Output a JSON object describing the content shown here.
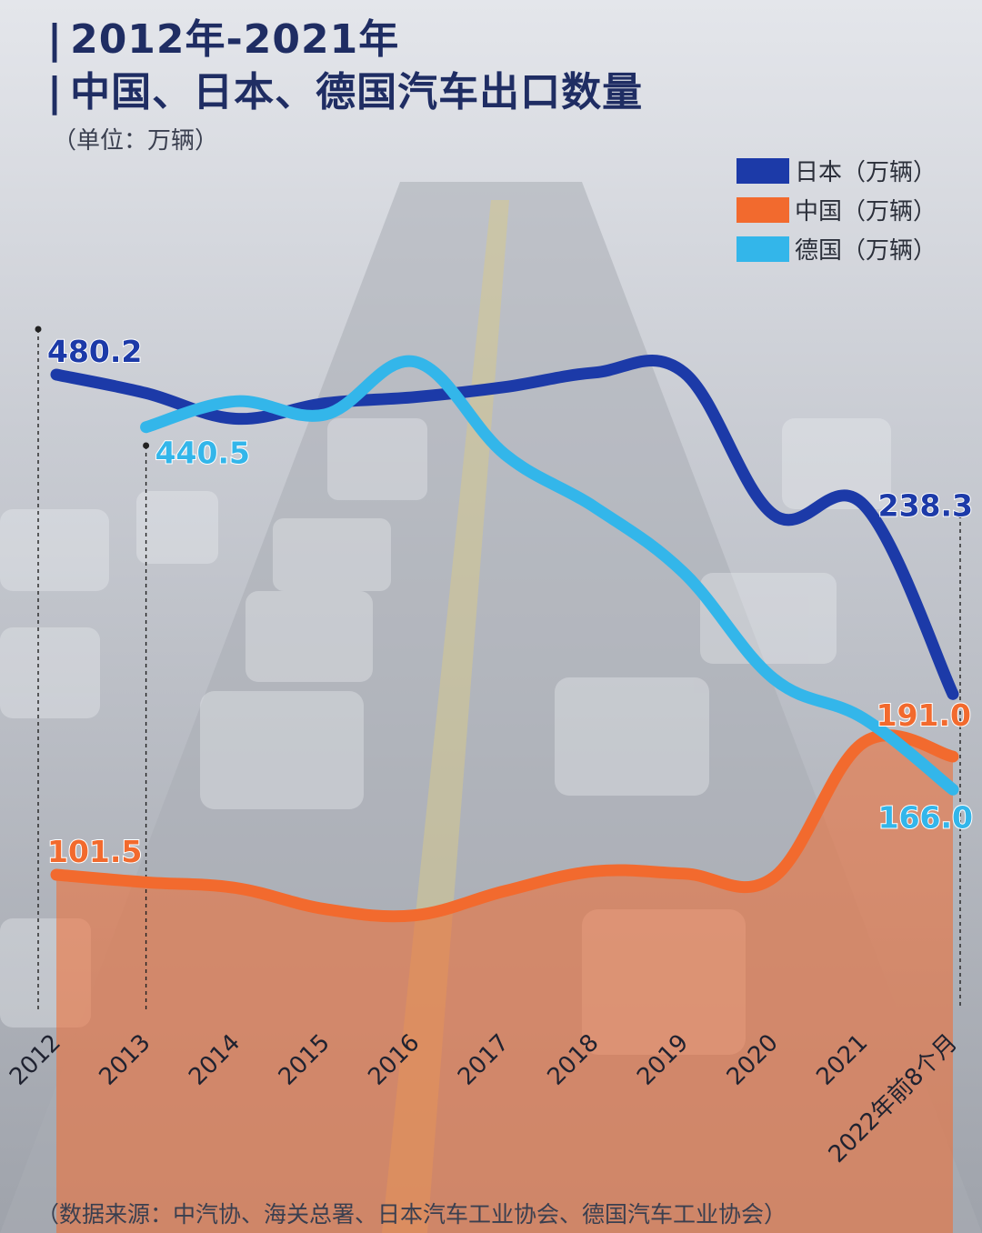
{
  "title_line1": "2012年-2021年",
  "title_line2": "中国、日本、德国汽车出口数量",
  "unit": "（单位：万辆）",
  "source": "（数据来源：中汽协、海关总署、日本汽车工业协会、德国汽车工业协会）",
  "legend": [
    {
      "label": "日本（万辆）",
      "color": "#1c3aa8"
    },
    {
      "label": "中国（万辆）",
      "color": "#f26a2e"
    },
    {
      "label": "德国（万辆）",
      "color": "#33b6ea"
    }
  ],
  "chart_data": {
    "type": "line",
    "title": "2012年-2021年 中国、日本、德国汽车出口数量",
    "ylabel": "万辆",
    "ylim": [
      0,
      520
    ],
    "grid": false,
    "legend_position": "top-right",
    "categories": [
      "2012",
      "2013",
      "2014",
      "2015",
      "2016",
      "2017",
      "2018",
      "2019",
      "2020",
      "2021",
      "2022年前8个月"
    ],
    "series": [
      {
        "name": "日本（万辆）",
        "color": "#1c3aa8",
        "values": [
          480.2,
          466.2,
          446.8,
          458.5,
          463.2,
          470.8,
          481.7,
          481.8,
          374.1,
          381.9,
          238.3
        ]
      },
      {
        "name": "中国（万辆）",
        "color": "#f26a2e",
        "area": true,
        "values": [
          101.5,
          95.8,
          91.5,
          75.5,
          70.8,
          89.1,
          104.1,
          102.4,
          99.5,
          201.5,
          191.0
        ]
      },
      {
        "name": "德国（万辆）",
        "color": "#33b6ea",
        "values": [
          null,
          440.5,
          460.0,
          450.0,
          490.0,
          420.0,
          380.0,
          330.0,
          250.0,
          220.0,
          166.0
        ]
      }
    ],
    "labels": [
      {
        "series": "日本（万辆）",
        "category": "2012",
        "text": "480.2"
      },
      {
        "series": "德国（万辆）",
        "category": "2013",
        "text": "440.5"
      },
      {
        "series": "中国（万辆）",
        "category": "2012",
        "text": "101.5"
      },
      {
        "series": "日本（万辆）",
        "category": "2022年前8个月",
        "text": "238.3"
      },
      {
        "series": "中国（万辆）",
        "category": "2022年前8个月",
        "text": "191.0"
      },
      {
        "series": "德国（万辆）",
        "category": "2022年前8个月",
        "text": "166.0"
      }
    ]
  }
}
